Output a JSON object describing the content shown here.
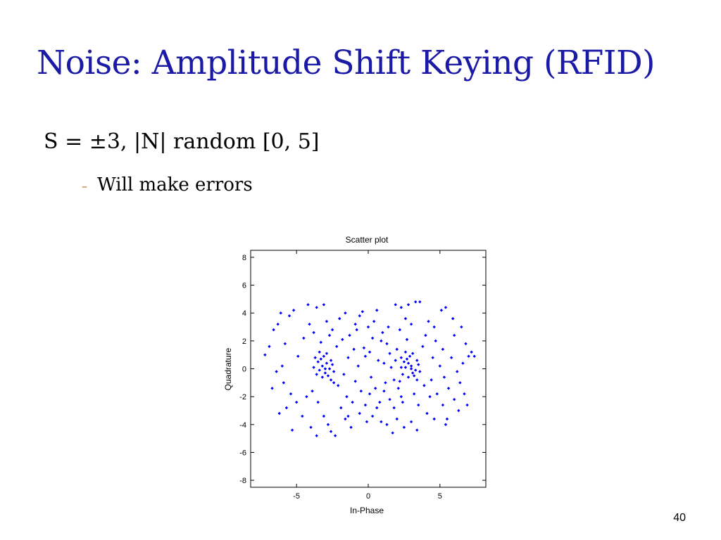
{
  "slide": {
    "title": "Noise: Amplitude Shift Keying (RFID)",
    "bullet_main": "S = ±3, |N| random [0, 5]",
    "bullet_sub": "Will make errors",
    "bullet_sub_marker": "–",
    "page_number": "40"
  },
  "chart_data": {
    "type": "scatter",
    "title": "Scatter plot",
    "xlabel": "In-Phase",
    "ylabel": "Quadrature",
    "xlim": [
      -8.2,
      8.2
    ],
    "ylim": [
      -8.5,
      8.5
    ],
    "xticks": [
      -5,
      0,
      5
    ],
    "yticks": [
      -8,
      -6,
      -4,
      -2,
      0,
      2,
      4,
      6,
      8
    ],
    "marker_color": "#0000ff",
    "grid": false,
    "points": [
      [
        -3.2,
        0.2
      ],
      [
        -2.9,
        0.4
      ],
      [
        -3.4,
        -0.1
      ],
      [
        -2.7,
        0.0
      ],
      [
        -3.0,
        -0.3
      ],
      [
        -3.5,
        0.5
      ],
      [
        -2.6,
        0.6
      ],
      [
        -3.1,
        0.9
      ],
      [
        -2.8,
        -0.5
      ],
      [
        -3.6,
        -0.4
      ],
      [
        -3.3,
        0.7
      ],
      [
        -2.5,
        0.3
      ],
      [
        -3.8,
        0.1
      ],
      [
        -2.4,
        -0.2
      ],
      [
        -3.0,
        0.0
      ],
      [
        -3.2,
        -0.6
      ],
      [
        -2.9,
        1.1
      ],
      [
        -3.7,
        0.8
      ],
      [
        -2.6,
        -0.8
      ],
      [
        -3.4,
        1.2
      ],
      [
        3.0,
        0.2
      ],
      [
        2.8,
        0.4
      ],
      [
        3.3,
        -0.1
      ],
      [
        2.6,
        0.1
      ],
      [
        3.1,
        -0.3
      ],
      [
        2.5,
        0.5
      ],
      [
        3.4,
        0.6
      ],
      [
        2.9,
        0.9
      ],
      [
        3.2,
        -0.5
      ],
      [
        2.4,
        -0.4
      ],
      [
        2.7,
        0.7
      ],
      [
        3.5,
        0.3
      ],
      [
        2.3,
        0.1
      ],
      [
        3.6,
        -0.2
      ],
      [
        3.0,
        0.0
      ],
      [
        2.8,
        -0.6
      ],
      [
        3.1,
        1.1
      ],
      [
        2.3,
        0.8
      ],
      [
        3.4,
        -0.8
      ],
      [
        2.6,
        1.2
      ],
      [
        -7.2,
        1.0
      ],
      [
        -6.6,
        2.8
      ],
      [
        -6.9,
        1.6
      ],
      [
        -6.3,
        3.2
      ],
      [
        -6.0,
        0.2
      ],
      [
        -6.4,
        -0.2
      ],
      [
        -5.8,
        1.8
      ],
      [
        -5.5,
        3.8
      ],
      [
        -5.2,
        4.2
      ],
      [
        -6.1,
        4.0
      ],
      [
        -5.9,
        -1.0
      ],
      [
        -6.7,
        -1.4
      ],
      [
        -6.2,
        -3.2
      ],
      [
        -5.7,
        -2.8
      ],
      [
        -5.4,
        -1.8
      ],
      [
        -5.0,
        -2.4
      ],
      [
        -4.6,
        -3.4
      ],
      [
        -4.3,
        -2.0
      ],
      [
        -5.3,
        -4.4
      ],
      [
        -4.9,
        0.9
      ],
      [
        -4.5,
        2.2
      ],
      [
        -4.1,
        3.2
      ],
      [
        -3.8,
        2.6
      ],
      [
        -3.6,
        4.4
      ],
      [
        -4.2,
        4.6
      ],
      [
        -3.3,
        1.9
      ],
      [
        -3.9,
        -1.6
      ],
      [
        -3.5,
        -2.4
      ],
      [
        -3.1,
        -3.4
      ],
      [
        -4.0,
        -4.2
      ],
      [
        -3.6,
        -4.8
      ],
      [
        -2.8,
        -4.0
      ],
      [
        -2.6,
        -4.5
      ],
      [
        -2.3,
        -4.8
      ],
      [
        -2.9,
        3.4
      ],
      [
        -3.1,
        4.6
      ],
      [
        -2.7,
        2.4
      ],
      [
        -2.2,
        1.6
      ],
      [
        -2.0,
        3.6
      ],
      [
        -1.6,
        4.0
      ],
      [
        -1.8,
        2.1
      ],
      [
        -2.1,
        -1.2
      ],
      [
        -1.5,
        -2.0
      ],
      [
        -1.9,
        -2.8
      ],
      [
        -1.6,
        -3.6
      ],
      [
        -1.2,
        -4.2
      ],
      [
        -1.4,
        0.8
      ],
      [
        -1.0,
        1.4
      ],
      [
        -0.8,
        2.8
      ],
      [
        -0.6,
        3.8
      ],
      [
        -0.4,
        4.1
      ],
      [
        -0.9,
        -0.9
      ],
      [
        -0.5,
        -1.6
      ],
      [
        -0.2,
        -2.6
      ],
      [
        -0.6,
        -3.2
      ],
      [
        -0.1,
        -3.8
      ],
      [
        0.1,
        1.2
      ],
      [
        0.3,
        2.2
      ],
      [
        0.0,
        3.0
      ],
      [
        0.4,
        3.4
      ],
      [
        0.6,
        4.2
      ],
      [
        0.2,
        -0.6
      ],
      [
        0.5,
        -1.4
      ],
      [
        0.8,
        -2.4
      ],
      [
        0.3,
        -3.4
      ],
      [
        0.9,
        -3.8
      ],
      [
        1.1,
        0.4
      ],
      [
        1.3,
        1.8
      ],
      [
        1.0,
        2.6
      ],
      [
        1.4,
        3.0
      ],
      [
        1.6,
        0.1
      ],
      [
        1.2,
        -1.0
      ],
      [
        1.5,
        -2.2
      ],
      [
        1.8,
        -2.8
      ],
      [
        1.3,
        -4.0
      ],
      [
        1.7,
        -4.6
      ],
      [
        2.0,
        1.4
      ],
      [
        2.2,
        2.8
      ],
      [
        1.9,
        4.6
      ],
      [
        2.3,
        4.4
      ],
      [
        2.1,
        -1.4
      ],
      [
        2.4,
        -2.4
      ],
      [
        2.0,
        -3.6
      ],
      [
        2.5,
        -4.2
      ],
      [
        2.6,
        3.6
      ],
      [
        2.8,
        4.6
      ],
      [
        2.7,
        2.1
      ],
      [
        3.0,
        3.2
      ],
      [
        3.3,
        4.8
      ],
      [
        3.6,
        4.8
      ],
      [
        3.2,
        -1.8
      ],
      [
        3.5,
        -2.6
      ],
      [
        3.0,
        -3.8
      ],
      [
        3.4,
        -4.4
      ],
      [
        3.8,
        1.6
      ],
      [
        4.0,
        2.4
      ],
      [
        4.2,
        3.4
      ],
      [
        3.9,
        -1.2
      ],
      [
        4.3,
        -2.0
      ],
      [
        4.1,
        -3.2
      ],
      [
        4.5,
        0.8
      ],
      [
        4.7,
        2.0
      ],
      [
        4.6,
        3.0
      ],
      [
        4.4,
        -0.8
      ],
      [
        4.8,
        -1.8
      ],
      [
        4.6,
        -3.6
      ],
      [
        5.0,
        0.2
      ],
      [
        5.2,
        1.4
      ],
      [
        5.1,
        4.2
      ],
      [
        5.4,
        4.4
      ],
      [
        5.3,
        -0.6
      ],
      [
        5.6,
        -1.4
      ],
      [
        5.2,
        -2.6
      ],
      [
        5.5,
        -3.6
      ],
      [
        5.4,
        -4.0
      ],
      [
        5.8,
        0.8
      ],
      [
        6.0,
        2.4
      ],
      [
        5.9,
        3.6
      ],
      [
        6.2,
        -0.2
      ],
      [
        6.4,
        -1.0
      ],
      [
        6.0,
        -2.2
      ],
      [
        6.3,
        -3.0
      ],
      [
        6.6,
        0.4
      ],
      [
        6.8,
        1.8
      ],
      [
        6.7,
        -1.8
      ],
      [
        7.0,
        0.9
      ],
      [
        7.2,
        1.2
      ],
      [
        6.5,
        3.0
      ],
      [
        6.9,
        -2.6
      ],
      [
        7.4,
        0.9
      ],
      [
        -1.3,
        2.4
      ],
      [
        -0.3,
        1.5
      ],
      [
        0.7,
        0.6
      ],
      [
        1.5,
        1.1
      ],
      [
        -1.1,
        -2.4
      ],
      [
        0.1,
        -1.8
      ],
      [
        1.1,
        -1.6
      ],
      [
        -0.7,
        0.2
      ],
      [
        0.9,
        2.0
      ],
      [
        1.8,
        -0.8
      ],
      [
        -2.4,
        -1.0
      ],
      [
        -1.7,
        -0.4
      ],
      [
        2.2,
        -0.9
      ],
      [
        1.9,
        0.6
      ],
      [
        -0.9,
        3.2
      ],
      [
        0.6,
        -2.8
      ],
      [
        -1.4,
        -3.4
      ],
      [
        2.3,
        -2.0
      ],
      [
        -2.5,
        2.8
      ],
      [
        -0.2,
        0.9
      ]
    ]
  }
}
